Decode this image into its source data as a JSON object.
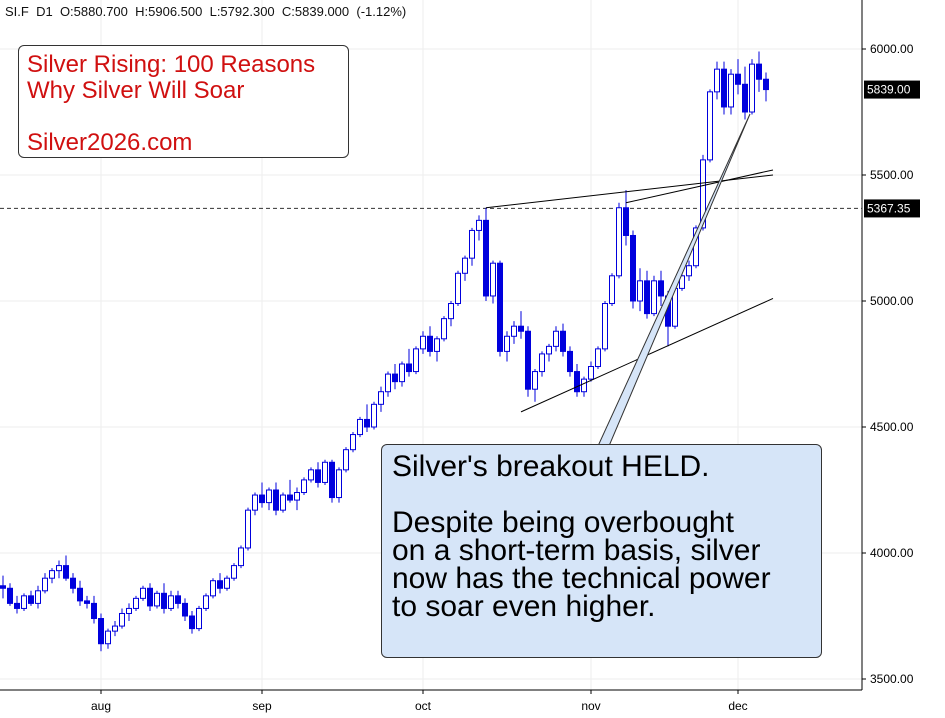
{
  "header": {
    "symbol": "SI.F",
    "timeframe": "D1",
    "open": "O:5880.700",
    "high": "H:5906.500",
    "low": "L:5792.300",
    "close": "C:5839.000",
    "change": "(-1.12%)"
  },
  "promo": {
    "line1": "Silver Rising: 100 Reasons",
    "line2": "Why Silver Will Soar",
    "url": "Silver2026.com"
  },
  "callout": {
    "line1": "Silver's breakout HELD.",
    "line2": "Despite being overbought",
    "line3": "on a short-term basis, silver",
    "line4": "now has the technical power",
    "line5": "to soar even higher."
  },
  "colors": {
    "up_candle": "#ffffff",
    "down_candle": "#0000dd",
    "candle_outline": "#0000dd",
    "flag_bg": "#000000",
    "callout_bg": "#d6e5f8",
    "promo_text": "#d01010"
  },
  "chart_data": {
    "type": "candlestick",
    "x_labels": [
      "aug",
      "sep",
      "oct",
      "nov",
      "dec"
    ],
    "y_ticks": [
      "6000.00",
      "5500.00",
      "5000.00",
      "4500.00",
      "4000.00",
      "3500.00"
    ],
    "ylim": [
      3480,
      6100
    ],
    "last_price_label": "5839.00",
    "last_price": 5839.0,
    "reference_price_label": "5367.35",
    "reference_price": 5367.35,
    "grid": true,
    "candles_ohlc": [
      [
        3870,
        3910,
        3820,
        3860
      ],
      [
        3860,
        3880,
        3790,
        3800
      ],
      [
        3800,
        3830,
        3760,
        3780
      ],
      [
        3780,
        3840,
        3770,
        3830
      ],
      [
        3830,
        3850,
        3790,
        3800
      ],
      [
        3800,
        3870,
        3780,
        3850
      ],
      [
        3850,
        3920,
        3840,
        3900
      ],
      [
        3900,
        3940,
        3880,
        3930
      ],
      [
        3930,
        3970,
        3900,
        3950
      ],
      [
        3950,
        3990,
        3890,
        3900
      ],
      [
        3900,
        3920,
        3840,
        3860
      ],
      [
        3860,
        3890,
        3790,
        3810
      ],
      [
        3810,
        3830,
        3780,
        3800
      ],
      [
        3800,
        3830,
        3720,
        3740
      ],
      [
        3740,
        3760,
        3610,
        3640
      ],
      [
        3640,
        3700,
        3620,
        3690
      ],
      [
        3690,
        3730,
        3670,
        3710
      ],
      [
        3710,
        3780,
        3700,
        3760
      ],
      [
        3760,
        3800,
        3730,
        3780
      ],
      [
        3780,
        3830,
        3770,
        3820
      ],
      [
        3820,
        3870,
        3810,
        3860
      ],
      [
        3860,
        3880,
        3770,
        3790
      ],
      [
        3790,
        3850,
        3780,
        3840
      ],
      [
        3840,
        3880,
        3760,
        3780
      ],
      [
        3780,
        3850,
        3770,
        3830
      ],
      [
        3830,
        3850,
        3780,
        3800
      ],
      [
        3800,
        3820,
        3730,
        3750
      ],
      [
        3750,
        3770,
        3680,
        3700
      ],
      [
        3700,
        3790,
        3690,
        3780
      ],
      [
        3780,
        3840,
        3770,
        3830
      ],
      [
        3830,
        3900,
        3820,
        3890
      ],
      [
        3890,
        3920,
        3840,
        3860
      ],
      [
        3860,
        3910,
        3850,
        3900
      ],
      [
        3900,
        3960,
        3890,
        3950
      ],
      [
        3950,
        4030,
        3940,
        4020
      ],
      [
        4020,
        4180,
        4010,
        4170
      ],
      [
        4170,
        4240,
        4150,
        4230
      ],
      [
        4230,
        4280,
        4180,
        4200
      ],
      [
        4200,
        4260,
        4170,
        4250
      ],
      [
        4250,
        4280,
        4150,
        4170
      ],
      [
        4170,
        4240,
        4160,
        4230
      ],
      [
        4230,
        4290,
        4200,
        4210
      ],
      [
        4210,
        4260,
        4170,
        4240
      ],
      [
        4240,
        4300,
        4230,
        4290
      ],
      [
        4290,
        4340,
        4280,
        4330
      ],
      [
        4330,
        4360,
        4260,
        4280
      ],
      [
        4280,
        4370,
        4270,
        4360
      ],
      [
        4360,
        4370,
        4200,
        4220
      ],
      [
        4220,
        4340,
        4200,
        4330
      ],
      [
        4330,
        4420,
        4320,
        4410
      ],
      [
        4410,
        4480,
        4400,
        4470
      ],
      [
        4470,
        4540,
        4460,
        4530
      ],
      [
        4530,
        4590,
        4480,
        4500
      ],
      [
        4500,
        4600,
        4490,
        4590
      ],
      [
        4590,
        4660,
        4560,
        4640
      ],
      [
        4640,
        4720,
        4620,
        4710
      ],
      [
        4710,
        4750,
        4650,
        4680
      ],
      [
        4680,
        4760,
        4660,
        4750
      ],
      [
        4750,
        4810,
        4700,
        4720
      ],
      [
        4720,
        4820,
        4710,
        4810
      ],
      [
        4810,
        4880,
        4790,
        4860
      ],
      [
        4860,
        4900,
        4780,
        4800
      ],
      [
        4800,
        4860,
        4760,
        4850
      ],
      [
        4850,
        4940,
        4840,
        4930
      ],
      [
        4930,
        5000,
        4900,
        4990
      ],
      [
        4990,
        5120,
        4980,
        5110
      ],
      [
        5110,
        5180,
        5080,
        5170
      ],
      [
        5170,
        5290,
        5140,
        5280
      ],
      [
        5280,
        5340,
        5240,
        5320
      ],
      [
        5320,
        5370,
        5000,
        5020
      ],
      [
        5020,
        5160,
        4990,
        5150
      ],
      [
        5150,
        5160,
        4780,
        4800
      ],
      [
        4800,
        4880,
        4760,
        4860
      ],
      [
        4860,
        4920,
        4830,
        4900
      ],
      [
        4900,
        4960,
        4850,
        4880
      ],
      [
        4880,
        4900,
        4620,
        4650
      ],
      [
        4650,
        4730,
        4600,
        4720
      ],
      [
        4720,
        4800,
        4700,
        4790
      ],
      [
        4790,
        4830,
        4760,
        4820
      ],
      [
        4820,
        4900,
        4800,
        4880
      ],
      [
        4880,
        4910,
        4780,
        4800
      ],
      [
        4800,
        4820,
        4700,
        4720
      ],
      [
        4720,
        4750,
        4620,
        4640
      ],
      [
        4640,
        4700,
        4620,
        4690
      ],
      [
        4690,
        4760,
        4680,
        4740
      ],
      [
        4740,
        4820,
        4730,
        4810
      ],
      [
        4810,
        5000,
        4800,
        4990
      ],
      [
        4990,
        5110,
        4980,
        5100
      ],
      [
        5100,
        5390,
        5090,
        5370
      ],
      [
        5370,
        5440,
        5220,
        5260
      ],
      [
        5260,
        5280,
        4970,
        5000
      ],
      [
        5000,
        5130,
        4960,
        5080
      ],
      [
        5080,
        5120,
        4930,
        4950
      ],
      [
        4950,
        5100,
        4940,
        5080
      ],
      [
        5080,
        5120,
        4980,
        5020
      ],
      [
        5020,
        5040,
        4820,
        4900
      ],
      [
        4900,
        5060,
        4890,
        5050
      ],
      [
        5050,
        5110,
        5040,
        5100
      ],
      [
        5100,
        5160,
        5080,
        5140
      ],
      [
        5140,
        5300,
        5130,
        5290
      ],
      [
        5290,
        5580,
        5280,
        5560
      ],
      [
        5560,
        5840,
        5550,
        5830
      ],
      [
        5830,
        5950,
        5800,
        5920
      ],
      [
        5920,
        5950,
        5740,
        5770
      ],
      [
        5770,
        5920,
        5740,
        5900
      ],
      [
        5900,
        5960,
        5820,
        5860
      ],
      [
        5860,
        5930,
        5720,
        5750
      ],
      [
        5750,
        5960,
        5740,
        5940
      ],
      [
        5940,
        5990,
        5830,
        5880
      ],
      [
        5880,
        5906.5,
        5792.3,
        5839
      ]
    ],
    "trendlines_price": [
      {
        "from": [
          69,
          5370
        ],
        "to": [
          110,
          5500
        ]
      },
      {
        "from": [
          74,
          4560
        ],
        "to": [
          110,
          5010
        ]
      },
      {
        "from": [
          89,
          5390
        ],
        "to": [
          110,
          5520
        ]
      }
    ]
  }
}
